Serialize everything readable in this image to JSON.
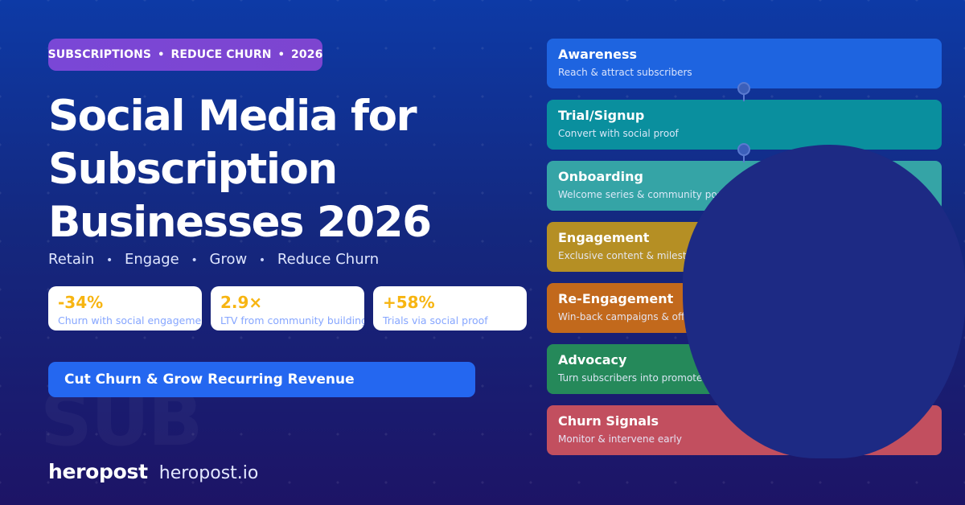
{
  "badge": {
    "items": [
      "SUBSCRIPTIONS",
      "REDUCE CHURN",
      "2026"
    ],
    "separator": "•"
  },
  "title": {
    "lines": [
      "Social Media for",
      "Subscription",
      "Businesses 2026"
    ]
  },
  "subtitle": {
    "items": [
      "Retain",
      "Engage",
      "Grow",
      "Reduce Churn"
    ],
    "separator": "•"
  },
  "stats": [
    {
      "value": "-34%",
      "label": "Churn with social engagement"
    },
    {
      "value": "2.9×",
      "label": "LTV from community building"
    },
    {
      "value": "+58%",
      "label": "Trials via social proof"
    }
  ],
  "cta": {
    "label": "Cut Churn & Grow Recurring Revenue"
  },
  "watermark": "SUB",
  "brand": {
    "name": "heropost",
    "url": "heropost.io"
  },
  "funnel": {
    "stages": [
      {
        "title": "Awareness",
        "desc": "Reach & attract subscribers",
        "color": "#1e64e0"
      },
      {
        "title": "Trial/Signup",
        "desc": "Convert with social proof",
        "color": "#0a8f9e"
      },
      {
        "title": "Onboarding",
        "desc": "Welcome series & community posts",
        "color": "#35a4a6"
      },
      {
        "title": "Engagement",
        "desc": "Exclusive content & milestones",
        "color": "#b58f24"
      },
      {
        "title": "Re-Engagement",
        "desc": "Win-back campaigns & offers",
        "color": "#c2691c"
      },
      {
        "title": "Advocacy",
        "desc": "Turn subscribers into promoters",
        "color": "#25895a"
      },
      {
        "title": "Churn Signals",
        "desc": "Monitor & intervene early",
        "color": "#c24f5f"
      }
    ]
  },
  "colors": {
    "background_top": "#0d3aa6",
    "background_bottom": "#1d1466",
    "badge": "#7a47d6",
    "stat_value": "#f7b512",
    "stat_label": "#86a6ff",
    "cta": "#2467f0"
  }
}
